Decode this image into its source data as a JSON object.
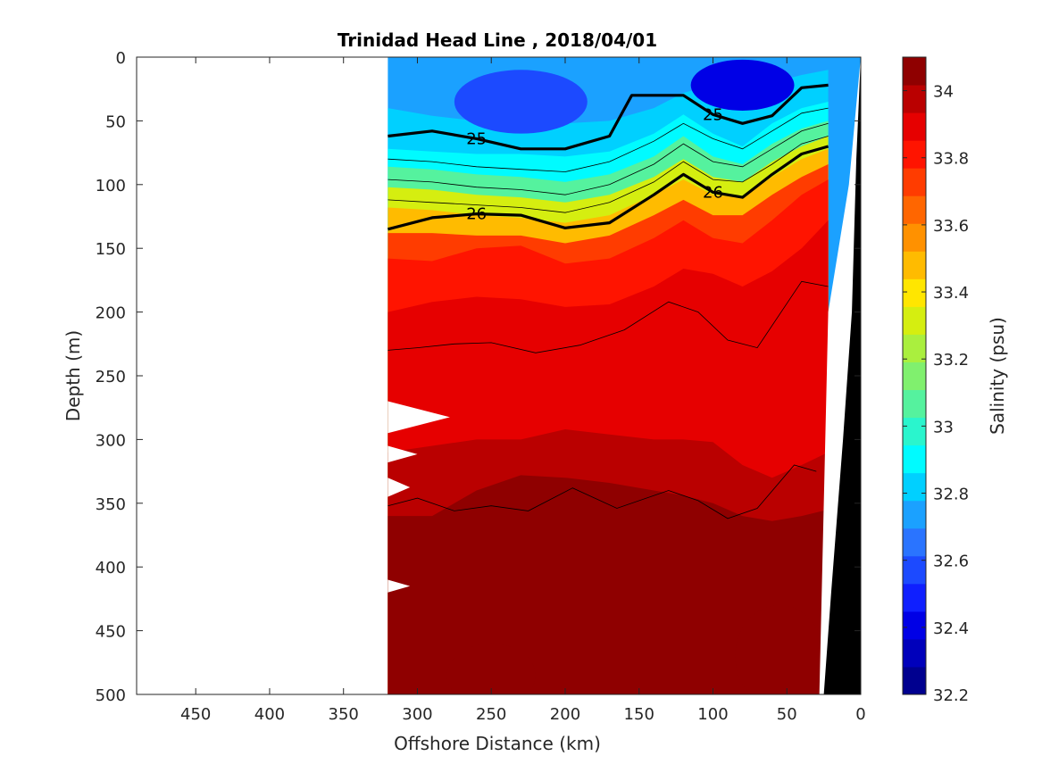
{
  "chart_data": {
    "type": "heatmap",
    "title": "Trinidad Head Line , 2018/04/01",
    "xlabel": "Offshore Distance (km)",
    "ylabel": "Depth (m)",
    "xlim": [
      490,
      0
    ],
    "ylim": [
      500,
      0
    ],
    "x_direction": "reversed",
    "y_direction": "reversed",
    "x_ticks": [
      450,
      400,
      350,
      300,
      250,
      200,
      150,
      100,
      50,
      0
    ],
    "y_ticks": [
      0,
      50,
      100,
      150,
      200,
      250,
      300,
      350,
      400,
      450,
      500
    ],
    "colorbar": {
      "label": "Salinity (psu)",
      "range": [
        32.2,
        34.1
      ],
      "ticks": [
        32.2,
        32.4,
        32.6,
        32.8,
        33,
        33.2,
        33.4,
        33.6,
        33.8,
        34
      ],
      "colors": [
        "#00008f",
        "#0000bb",
        "#0000e6",
        "#0f1fff",
        "#1c4aff",
        "#2a74ff",
        "#1ba1ff",
        "#00d0ff",
        "#00fbff",
        "#2af5cd",
        "#55f29e",
        "#80f06e",
        "#aaef3e",
        "#d5ee10",
        "#ffe600",
        "#ffbb00",
        "#ff9100",
        "#ff6600",
        "#ff3c00",
        "#ff1400",
        "#e60000",
        "#ba0000",
        "#8f0000"
      ]
    },
    "salinity_profiles": {
      "x_km": [
        320,
        290,
        260,
        230,
        200,
        170,
        140,
        120,
        100,
        80,
        60,
        40,
        22
      ],
      "layer_boundaries": [
        {
          "salinity": 32.8,
          "depth_m": [
            40,
            46,
            50,
            52,
            52,
            50,
            40,
            28,
            22,
            28,
            20,
            14,
            10
          ]
        },
        {
          "salinity": 32.9,
          "depth_m": [
            72,
            74,
            76,
            76,
            78,
            74,
            60,
            45,
            60,
            70,
            52,
            40,
            35
          ]
        },
        {
          "salinity": 33.1,
          "depth_m": [
            86,
            88,
            92,
            94,
            98,
            92,
            78,
            62,
            78,
            84,
            68,
            56,
            50
          ]
        },
        {
          "salinity": 33.3,
          "depth_m": [
            102,
            104,
            108,
            110,
            114,
            108,
            94,
            80,
            94,
            98,
            82,
            70,
            62
          ]
        },
        {
          "salinity": 33.5,
          "depth_m": [
            118,
            120,
            124,
            126,
            130,
            124,
            108,
            96,
            108,
            110,
            94,
            80,
            72
          ]
        },
        {
          "salinity": 33.7,
          "depth_m": [
            138,
            138,
            140,
            140,
            146,
            140,
            124,
            112,
            124,
            124,
            108,
            94,
            84
          ]
        },
        {
          "salinity": 33.8,
          "depth_m": [
            158,
            160,
            150,
            148,
            162,
            158,
            142,
            128,
            142,
            146,
            128,
            108,
            96
          ]
        },
        {
          "salinity": 33.9,
          "depth_m": [
            200,
            192,
            188,
            190,
            196,
            194,
            180,
            166,
            170,
            180,
            168,
            150,
            128
          ]
        },
        {
          "salinity": 34.0,
          "depth_m": [
            310,
            305,
            300,
            300,
            292,
            296,
            300,
            300,
            302,
            320,
            330,
            320,
            310
          ]
        },
        {
          "salinity": 34.1,
          "depth_m": [
            360,
            360,
            340,
            328,
            330,
            334,
            340,
            344,
            350,
            360,
            364,
            360,
            355
          ]
        }
      ],
      "surface_lows": [
        {
          "salinity": 32.6,
          "center_km": 230,
          "center_depth_m": 35,
          "half_width_km": 45,
          "half_height_m": 25
        },
        {
          "salinity": 32.4,
          "center_km": 80,
          "center_depth_m": 22,
          "half_width_km": 35,
          "half_height_m": 20
        }
      ],
      "deep_highs": [
        {
          "salinity": 34.1,
          "center_km": 250,
          "center_depth_m": 485,
          "half_width_km": 30,
          "half_height_m": 25
        },
        {
          "salinity": 34.1,
          "center_km": 55,
          "center_depth_m": 470,
          "half_width_km": 30,
          "half_height_m": 40
        }
      ]
    },
    "density_contours": [
      {
        "label": "25",
        "x_km": [
          320,
          290,
          260,
          230,
          200,
          170,
          155,
          120,
          100,
          80,
          60,
          40,
          22
        ],
        "depth_m": [
          62,
          58,
          64,
          72,
          72,
          62,
          30,
          30,
          45,
          52,
          46,
          24,
          22
        ]
      },
      {
        "label": "26",
        "x_km": [
          320,
          290,
          260,
          230,
          200,
          170,
          140,
          120,
          100,
          80,
          60,
          40,
          22
        ],
        "depth_m": [
          135,
          126,
          123,
          124,
          134,
          130,
          108,
          92,
          106,
          110,
          92,
          76,
          70
        ]
      }
    ],
    "thin_contours": [
      {
        "x_km": [
          320,
          290,
          260,
          230,
          200,
          170,
          140,
          120,
          100,
          80,
          60,
          40,
          22
        ],
        "depth_m": [
          80,
          82,
          86,
          88,
          90,
          82,
          66,
          52,
          64,
          72,
          58,
          44,
          40
        ]
      },
      {
        "x_km": [
          320,
          290,
          260,
          230,
          200,
          170,
          140,
          120,
          100,
          80,
          60,
          40,
          22
        ],
        "depth_m": [
          96,
          98,
          102,
          104,
          108,
          100,
          84,
          68,
          82,
          86,
          72,
          58,
          52
        ]
      },
      {
        "x_km": [
          320,
          290,
          260,
          230,
          200,
          170,
          140,
          120,
          100,
          80,
          60,
          40,
          22
        ],
        "depth_m": [
          112,
          114,
          116,
          118,
          122,
          114,
          98,
          82,
          96,
          98,
          84,
          68,
          62
        ]
      },
      {
        "x_km": [
          320,
          300,
          275,
          250,
          220,
          190,
          160,
          130,
          110,
          90,
          70,
          40,
          22
        ],
        "depth_m": [
          230,
          228,
          225,
          224,
          232,
          226,
          214,
          192,
          200,
          222,
          228,
          176,
          180
        ]
      },
      {
        "x_km": [
          320,
          300,
          275,
          250,
          225,
          195,
          165,
          130,
          110,
          90,
          70,
          45,
          30
        ],
        "depth_m": [
          352,
          346,
          356,
          352,
          356,
          338,
          354,
          340,
          348,
          362,
          354,
          320,
          325
        ]
      }
    ],
    "data_extent": {
      "x_km_max": 320,
      "depth_max_m": 500
    },
    "data_gaps": [
      {
        "depth_m": [
          270,
          295
        ],
        "x_km_from": 320,
        "x_km_to": 278
      },
      {
        "depth_m": [
          305,
          318
        ],
        "x_km_from": 320,
        "x_km_to": 300
      },
      {
        "depth_m": [
          330,
          345
        ],
        "x_km_from": 320,
        "x_km_to": 305
      },
      {
        "depth_m": [
          410,
          420
        ],
        "x_km_from": 320,
        "x_km_to": 305
      }
    ],
    "nearshore_blank": {
      "x_km": [
        0,
        8,
        22,
        28,
        32
      ],
      "depth_m": [
        0,
        100,
        200,
        500,
        500
      ]
    },
    "bathymetry": {
      "x_km": [
        0,
        3,
        6,
        12,
        20,
        25,
        0
      ],
      "depth_m": [
        0,
        80,
        200,
        300,
        420,
        500,
        500
      ],
      "color": "#000000"
    },
    "grid": false
  }
}
